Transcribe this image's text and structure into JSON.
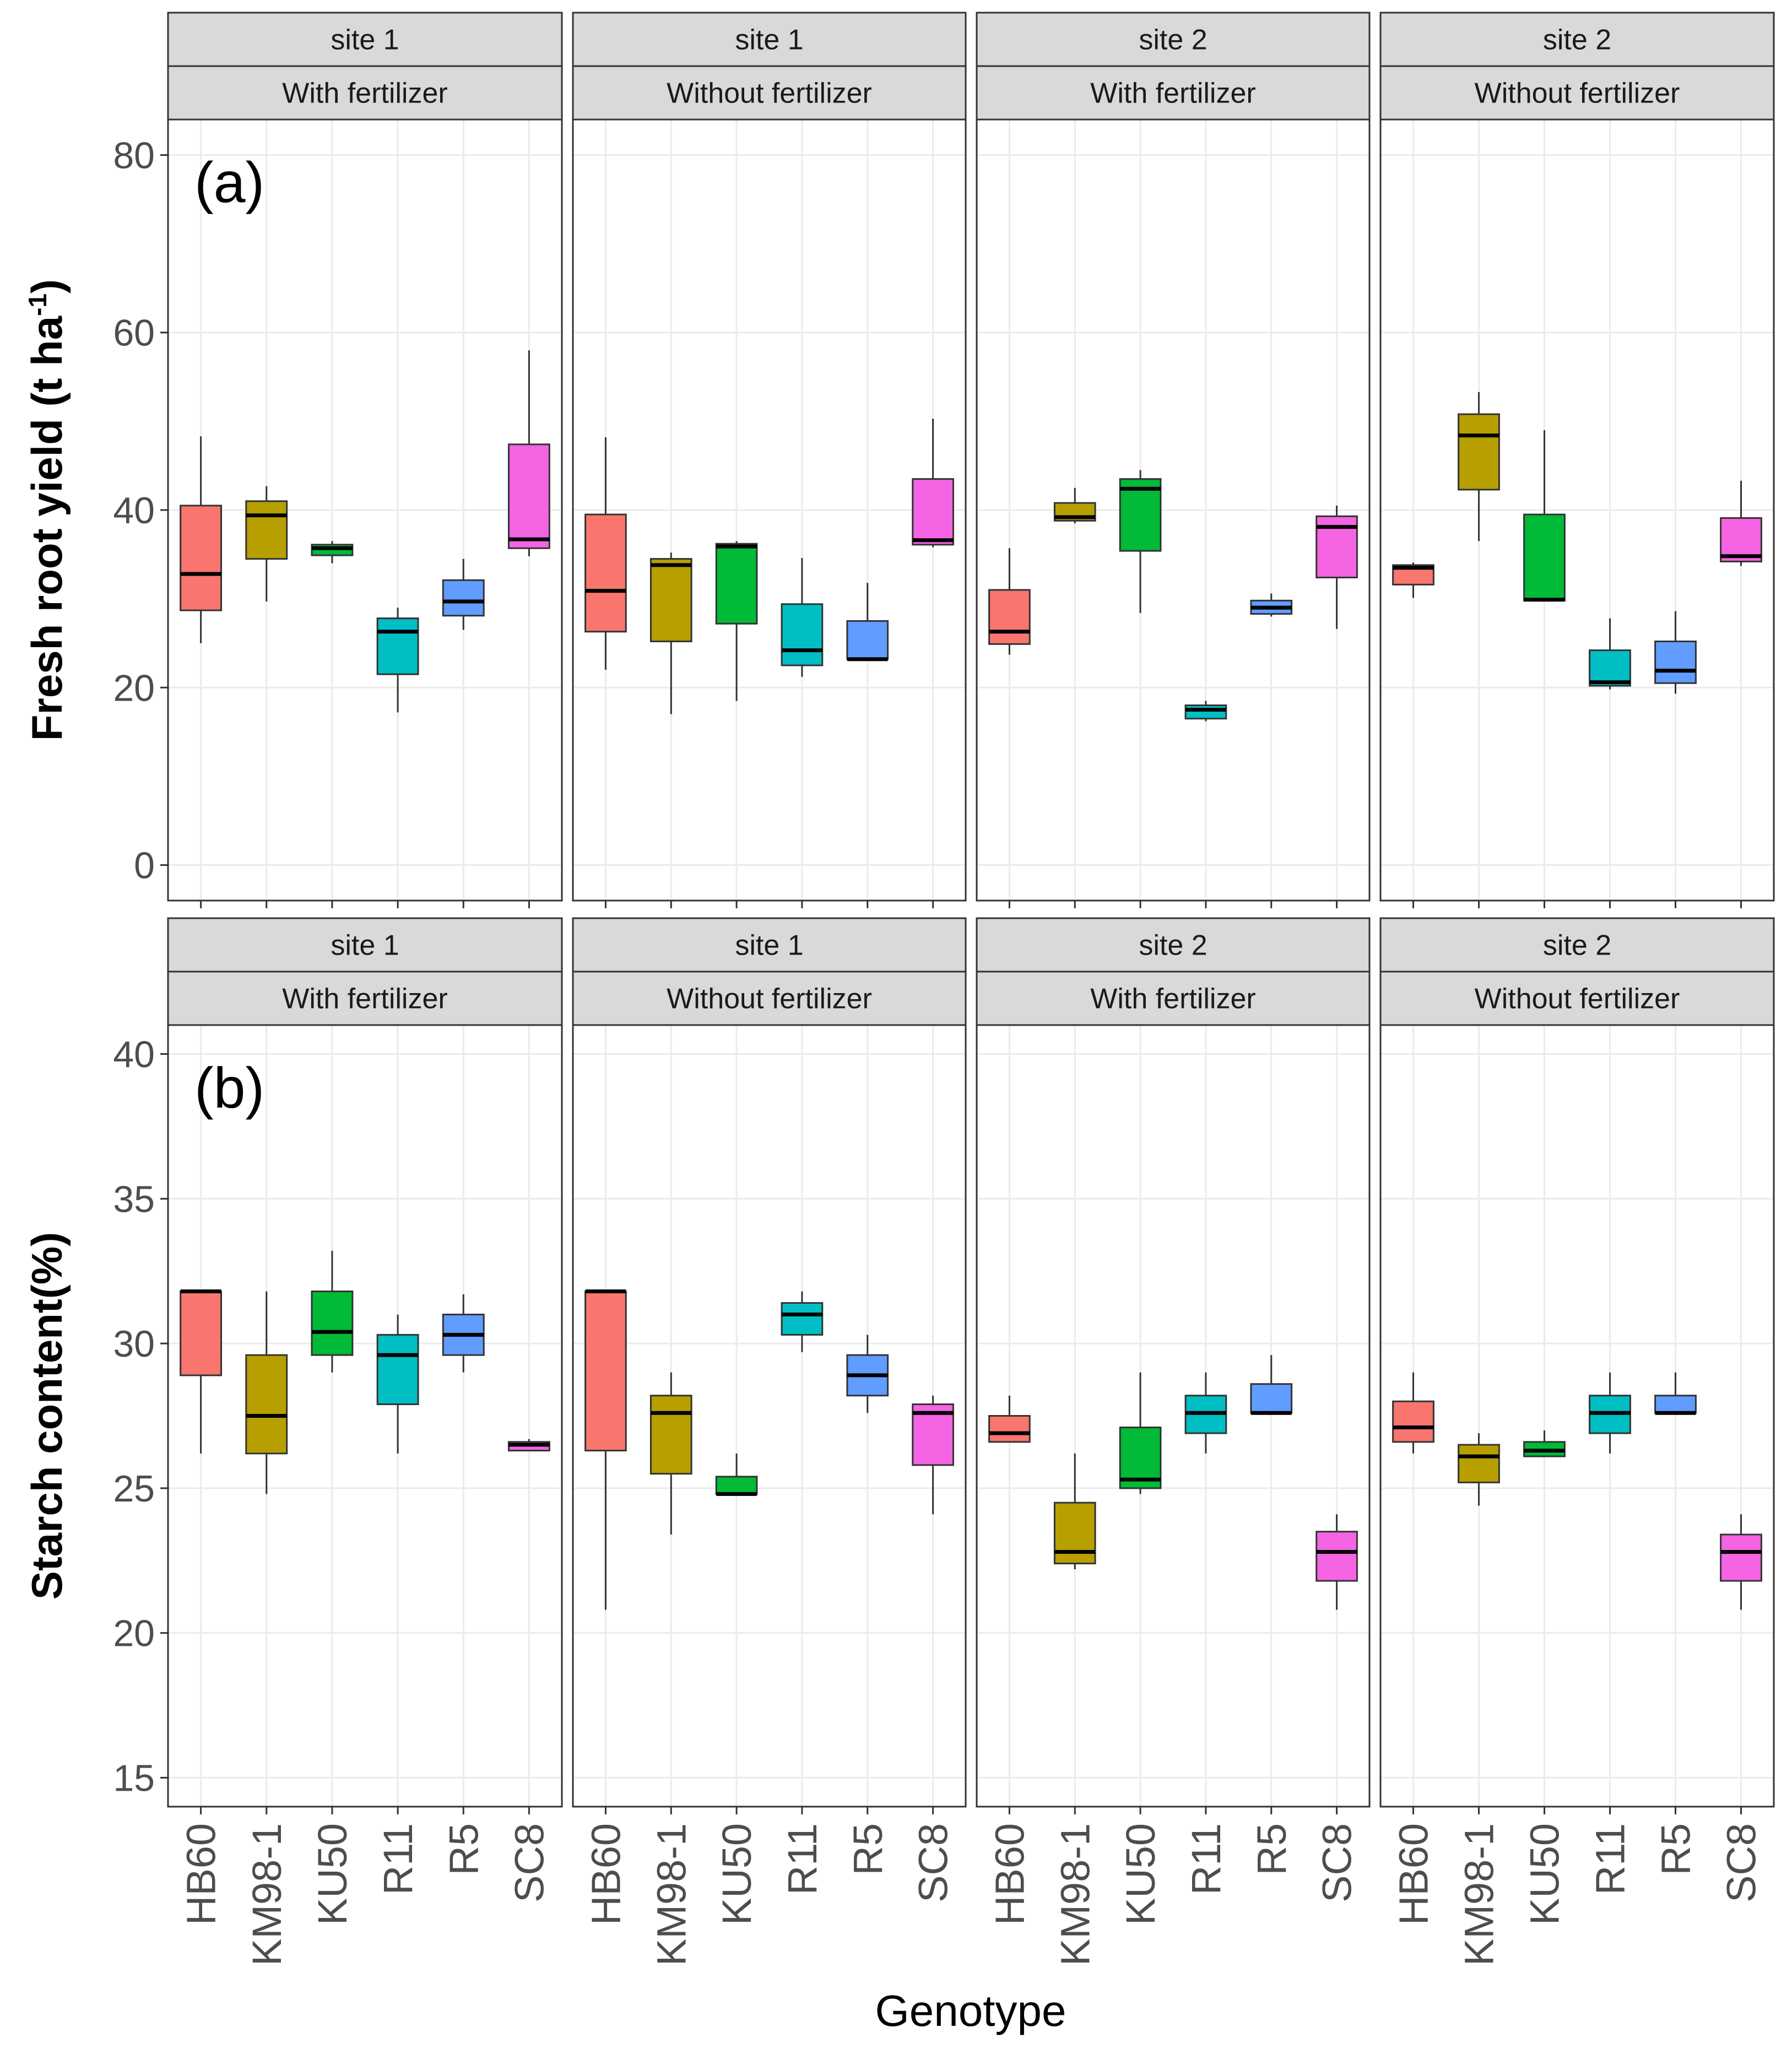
{
  "chart_data": [
    {
      "type": "boxplot",
      "panel_tag": "(a)",
      "ylabel": "Fresh root yield (t ha",
      "ylabel_superscript": "-1",
      "ylabel_suffix": ")",
      "ylim": [
        -4,
        84
      ],
      "yticks": [
        0,
        20,
        40,
        60,
        80
      ],
      "grid": true,
      "categories": [
        "HB60",
        "KM98-1",
        "KU50",
        "R11",
        "R5",
        "SC8"
      ],
      "facets": [
        {
          "site": "site 1",
          "treatment": "With fertilizer",
          "boxes": [
            {
              "genotype": "HB60",
              "whisker_low": 25.0,
              "q1": 28.7,
              "median": 32.8,
              "q3": 40.5,
              "whisker_high": 48.3
            },
            {
              "genotype": "KM98-1",
              "whisker_low": 29.7,
              "q1": 34.5,
              "median": 39.4,
              "q3": 41.0,
              "whisker_high": 42.7
            },
            {
              "genotype": "KU50",
              "whisker_low": 34.0,
              "q1": 34.9,
              "median": 35.7,
              "q3": 36.1,
              "whisker_high": 36.5
            },
            {
              "genotype": "R11",
              "whisker_low": 17.2,
              "q1": 21.5,
              "median": 26.3,
              "q3": 27.8,
              "whisker_high": 29.0
            },
            {
              "genotype": "R5",
              "whisker_low": 26.5,
              "q1": 28.1,
              "median": 29.7,
              "q3": 32.1,
              "whisker_high": 34.5
            },
            {
              "genotype": "SC8",
              "whisker_low": 34.8,
              "q1": 35.7,
              "median": 36.7,
              "q3": 47.4,
              "whisker_high": 58.0
            }
          ]
        },
        {
          "site": "site 1",
          "treatment": "Without fertilizer",
          "boxes": [
            {
              "genotype": "HB60",
              "whisker_low": 22.0,
              "q1": 26.3,
              "median": 30.9,
              "q3": 39.5,
              "whisker_high": 48.2
            },
            {
              "genotype": "KM98-1",
              "whisker_low": 17.0,
              "q1": 25.2,
              "median": 33.8,
              "q3": 34.5,
              "whisker_high": 35.2
            },
            {
              "genotype": "KU50",
              "whisker_low": 18.5,
              "q1": 27.2,
              "median": 35.9,
              "q3": 36.2,
              "whisker_high": 36.5
            },
            {
              "genotype": "R11",
              "whisker_low": 21.2,
              "q1": 22.5,
              "median": 24.2,
              "q3": 29.4,
              "whisker_high": 34.6
            },
            {
              "genotype": "R5",
              "whisker_low": 23.2,
              "q1": 23.2,
              "median": 23.2,
              "q3": 27.5,
              "whisker_high": 31.8
            },
            {
              "genotype": "SC8",
              "whisker_low": 35.8,
              "q1": 36.1,
              "median": 36.6,
              "q3": 43.5,
              "whisker_high": 50.3
            }
          ]
        },
        {
          "site": "site 2",
          "treatment": "With fertilizer",
          "boxes": [
            {
              "genotype": "HB60",
              "whisker_low": 23.7,
              "q1": 24.9,
              "median": 26.3,
              "q3": 31.0,
              "whisker_high": 35.7
            },
            {
              "genotype": "KM98-1",
              "whisker_low": 38.5,
              "q1": 38.8,
              "median": 39.2,
              "q3": 40.8,
              "whisker_high": 42.5
            },
            {
              "genotype": "KU50",
              "whisker_low": 28.4,
              "q1": 35.4,
              "median": 42.4,
              "q3": 43.5,
              "whisker_high": 44.5
            },
            {
              "genotype": "R11",
              "whisker_low": 16.2,
              "q1": 16.5,
              "median": 17.5,
              "q3": 18.0,
              "whisker_high": 18.5
            },
            {
              "genotype": "R5",
              "whisker_low": 28.0,
              "q1": 28.3,
              "median": 29.0,
              "q3": 29.8,
              "whisker_high": 30.6
            },
            {
              "genotype": "SC8",
              "whisker_low": 26.6,
              "q1": 32.4,
              "median": 38.1,
              "q3": 39.3,
              "whisker_high": 40.5
            }
          ]
        },
        {
          "site": "site 2",
          "treatment": "Without fertilizer",
          "boxes": [
            {
              "genotype": "HB60",
              "whisker_low": 30.1,
              "q1": 31.6,
              "median": 33.5,
              "q3": 33.8,
              "whisker_high": 34.1
            },
            {
              "genotype": "KM98-1",
              "whisker_low": 36.5,
              "q1": 42.3,
              "median": 48.4,
              "q3": 50.8,
              "whisker_high": 53.3
            },
            {
              "genotype": "KU50",
              "whisker_low": 29.8,
              "q1": 29.8,
              "median": 29.9,
              "q3": 39.5,
              "whisker_high": 49.0
            },
            {
              "genotype": "R11",
              "whisker_low": 19.8,
              "q1": 20.2,
              "median": 20.6,
              "q3": 24.2,
              "whisker_high": 27.8
            },
            {
              "genotype": "R5",
              "whisker_low": 19.3,
              "q1": 20.5,
              "median": 21.9,
              "q3": 25.2,
              "whisker_high": 28.6
            },
            {
              "genotype": "SC8",
              "whisker_low": 33.7,
              "q1": 34.2,
              "median": 34.8,
              "q3": 39.1,
              "whisker_high": 43.3
            }
          ]
        }
      ]
    },
    {
      "type": "boxplot",
      "panel_tag": "(b)",
      "ylabel": "Starch content(%)",
      "ylim": [
        14,
        41
      ],
      "yticks": [
        15,
        20,
        25,
        30,
        35,
        40
      ],
      "grid": true,
      "categories": [
        "HB60",
        "KM98-1",
        "KU50",
        "R11",
        "R5",
        "SC8"
      ],
      "xlabel": "Genotype",
      "facets": [
        {
          "site": "site 1",
          "treatment": "With fertilizer",
          "boxes": [
            {
              "genotype": "HB60",
              "whisker_low": 26.2,
              "q1": 28.9,
              "median": 31.8,
              "q3": 31.8,
              "whisker_high": 31.8
            },
            {
              "genotype": "KM98-1",
              "whisker_low": 24.8,
              "q1": 26.2,
              "median": 27.5,
              "q3": 29.6,
              "whisker_high": 31.8
            },
            {
              "genotype": "KU50",
              "whisker_low": 29.0,
              "q1": 29.6,
              "median": 30.4,
              "q3": 31.8,
              "whisker_high": 33.2
            },
            {
              "genotype": "R11",
              "whisker_low": 26.2,
              "q1": 27.9,
              "median": 29.6,
              "q3": 30.3,
              "whisker_high": 31.0
            },
            {
              "genotype": "R5",
              "whisker_low": 29.0,
              "q1": 29.6,
              "median": 30.3,
              "q3": 31.0,
              "whisker_high": 31.7
            },
            {
              "genotype": "SC8",
              "whisker_low": 26.3,
              "q1": 26.3,
              "median": 26.5,
              "q3": 26.6,
              "whisker_high": 26.7
            }
          ]
        },
        {
          "site": "site 1",
          "treatment": "Without fertilizer",
          "boxes": [
            {
              "genotype": "HB60",
              "whisker_low": 20.8,
              "q1": 26.3,
              "median": 31.8,
              "q3": 31.8,
              "whisker_high": 31.8
            },
            {
              "genotype": "KM98-1",
              "whisker_low": 23.4,
              "q1": 25.5,
              "median": 27.6,
              "q3": 28.2,
              "whisker_high": 29.0
            },
            {
              "genotype": "KU50",
              "whisker_low": 24.8,
              "q1": 24.8,
              "median": 24.8,
              "q3": 25.4,
              "whisker_high": 26.2
            },
            {
              "genotype": "R11",
              "whisker_low": 29.7,
              "q1": 30.3,
              "median": 31.0,
              "q3": 31.4,
              "whisker_high": 31.8
            },
            {
              "genotype": "R5",
              "whisker_low": 27.6,
              "q1": 28.2,
              "median": 28.9,
              "q3": 29.6,
              "whisker_high": 30.3
            },
            {
              "genotype": "SC8",
              "whisker_low": 24.1,
              "q1": 25.8,
              "median": 27.6,
              "q3": 27.9,
              "whisker_high": 28.2
            }
          ]
        },
        {
          "site": "site 2",
          "treatment": "With fertilizer",
          "boxes": [
            {
              "genotype": "HB60",
              "whisker_low": 26.6,
              "q1": 26.6,
              "median": 26.9,
              "q3": 27.5,
              "whisker_high": 28.2
            },
            {
              "genotype": "KM98-1",
              "whisker_low": 22.2,
              "q1": 22.4,
              "median": 22.8,
              "q3": 24.5,
              "whisker_high": 26.2
            },
            {
              "genotype": "KU50",
              "whisker_low": 24.8,
              "q1": 25.0,
              "median": 25.3,
              "q3": 27.1,
              "whisker_high": 29.0
            },
            {
              "genotype": "R11",
              "whisker_low": 26.2,
              "q1": 26.9,
              "median": 27.6,
              "q3": 28.2,
              "whisker_high": 29.0
            },
            {
              "genotype": "R5",
              "whisker_low": 27.6,
              "q1": 27.6,
              "median": 27.6,
              "q3": 28.6,
              "whisker_high": 29.6
            },
            {
              "genotype": "SC8",
              "whisker_low": 20.8,
              "q1": 21.8,
              "median": 22.8,
              "q3": 23.5,
              "whisker_high": 24.1
            }
          ]
        },
        {
          "site": "site 2",
          "treatment": "Without fertilizer",
          "boxes": [
            {
              "genotype": "HB60",
              "whisker_low": 26.2,
              "q1": 26.6,
              "median": 27.1,
              "q3": 28.0,
              "whisker_high": 29.0
            },
            {
              "genotype": "KM98-1",
              "whisker_low": 24.4,
              "q1": 25.2,
              "median": 26.1,
              "q3": 26.5,
              "whisker_high": 26.9
            },
            {
              "genotype": "KU50",
              "whisker_low": 26.1,
              "q1": 26.1,
              "median": 26.3,
              "q3": 26.6,
              "whisker_high": 27.0
            },
            {
              "genotype": "R11",
              "whisker_low": 26.2,
              "q1": 26.9,
              "median": 27.6,
              "q3": 28.2,
              "whisker_high": 29.0
            },
            {
              "genotype": "R5",
              "whisker_low": 27.6,
              "q1": 27.6,
              "median": 27.6,
              "q3": 28.2,
              "whisker_high": 29.0
            },
            {
              "genotype": "SC8",
              "whisker_low": 20.8,
              "q1": 21.8,
              "median": 22.8,
              "q3": 23.4,
              "whisker_high": 24.1
            }
          ]
        }
      ]
    }
  ],
  "colors": {
    "HB60": "#F8766D",
    "KM98-1": "#B79F00",
    "KU50": "#00BA38",
    "R11": "#00BFC4",
    "R5": "#619CFF",
    "SC8": "#F564E3",
    "strip_fill": "#D9D9D9",
    "panel_border": "#333333",
    "grid_major": "#EBEBEB",
    "grid_minor": "#F5F5F5"
  }
}
